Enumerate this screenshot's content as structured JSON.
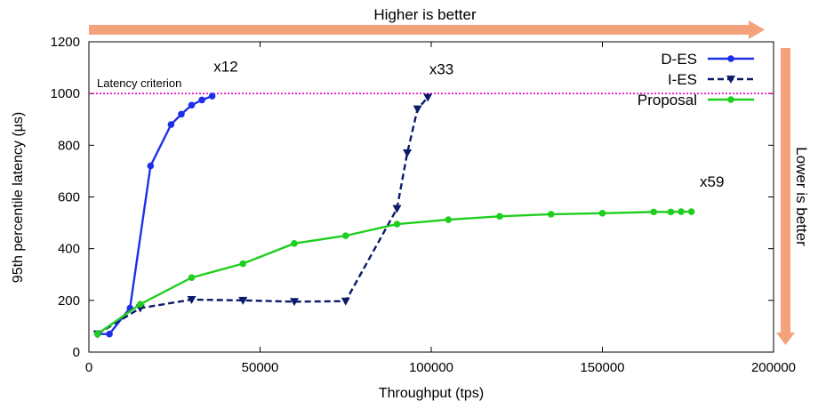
{
  "chart_data": {
    "type": "line",
    "xlabel": "Throughput (tps)",
    "ylabel": "95th percentile latency (µs)",
    "xlim": [
      0,
      200000
    ],
    "ylim": [
      0,
      1200
    ],
    "xticks": [
      0,
      50000,
      100000,
      150000,
      200000
    ],
    "yticks": [
      0,
      200,
      400,
      600,
      800,
      1000,
      1200
    ],
    "grid": false,
    "legend_position": "top-right",
    "criterion": {
      "label": "Latency criterion",
      "y": 1000,
      "color": "#e800c8"
    },
    "series": [
      {
        "name": "D-ES",
        "color": "#1e2fe8",
        "line": "solid",
        "marker": "circle",
        "x": [
          2500,
          6000,
          12000,
          18000,
          24000,
          27000,
          30000,
          33000,
          36000
        ],
        "y": [
          70,
          70,
          170,
          720,
          880,
          920,
          955,
          975,
          990
        ]
      },
      {
        "name": "I-ES",
        "color": "#0b1a6a",
        "line": "dashed",
        "marker": "triangle-down",
        "x": [
          2500,
          15000,
          30000,
          45000,
          60000,
          75000,
          90000,
          93000,
          96000,
          99000
        ],
        "y": [
          70,
          170,
          203,
          200,
          195,
          197,
          555,
          770,
          940,
          985
        ]
      },
      {
        "name": "Proposal",
        "color": "#1fcf1f",
        "line": "solid",
        "marker": "circle",
        "x": [
          2500,
          15000,
          30000,
          45000,
          60000,
          75000,
          90000,
          105000,
          120000,
          135000,
          150000,
          165000,
          170000,
          173000,
          176000
        ],
        "y": [
          70,
          185,
          288,
          342,
          420,
          450,
          495,
          512,
          525,
          533,
          537,
          542,
          542,
          543,
          543
        ]
      }
    ],
    "annotations": [
      {
        "text": "x12",
        "x": 40000,
        "y": 1085
      },
      {
        "text": "x33",
        "x": 103000,
        "y": 1075
      },
      {
        "text": "x59",
        "x": 182000,
        "y": 640
      }
    ],
    "arrows": {
      "top": {
        "label": "Higher is better",
        "color": "#f4a27c"
      },
      "right": {
        "label": "Lower is better",
        "color": "#f4a27c"
      }
    }
  }
}
